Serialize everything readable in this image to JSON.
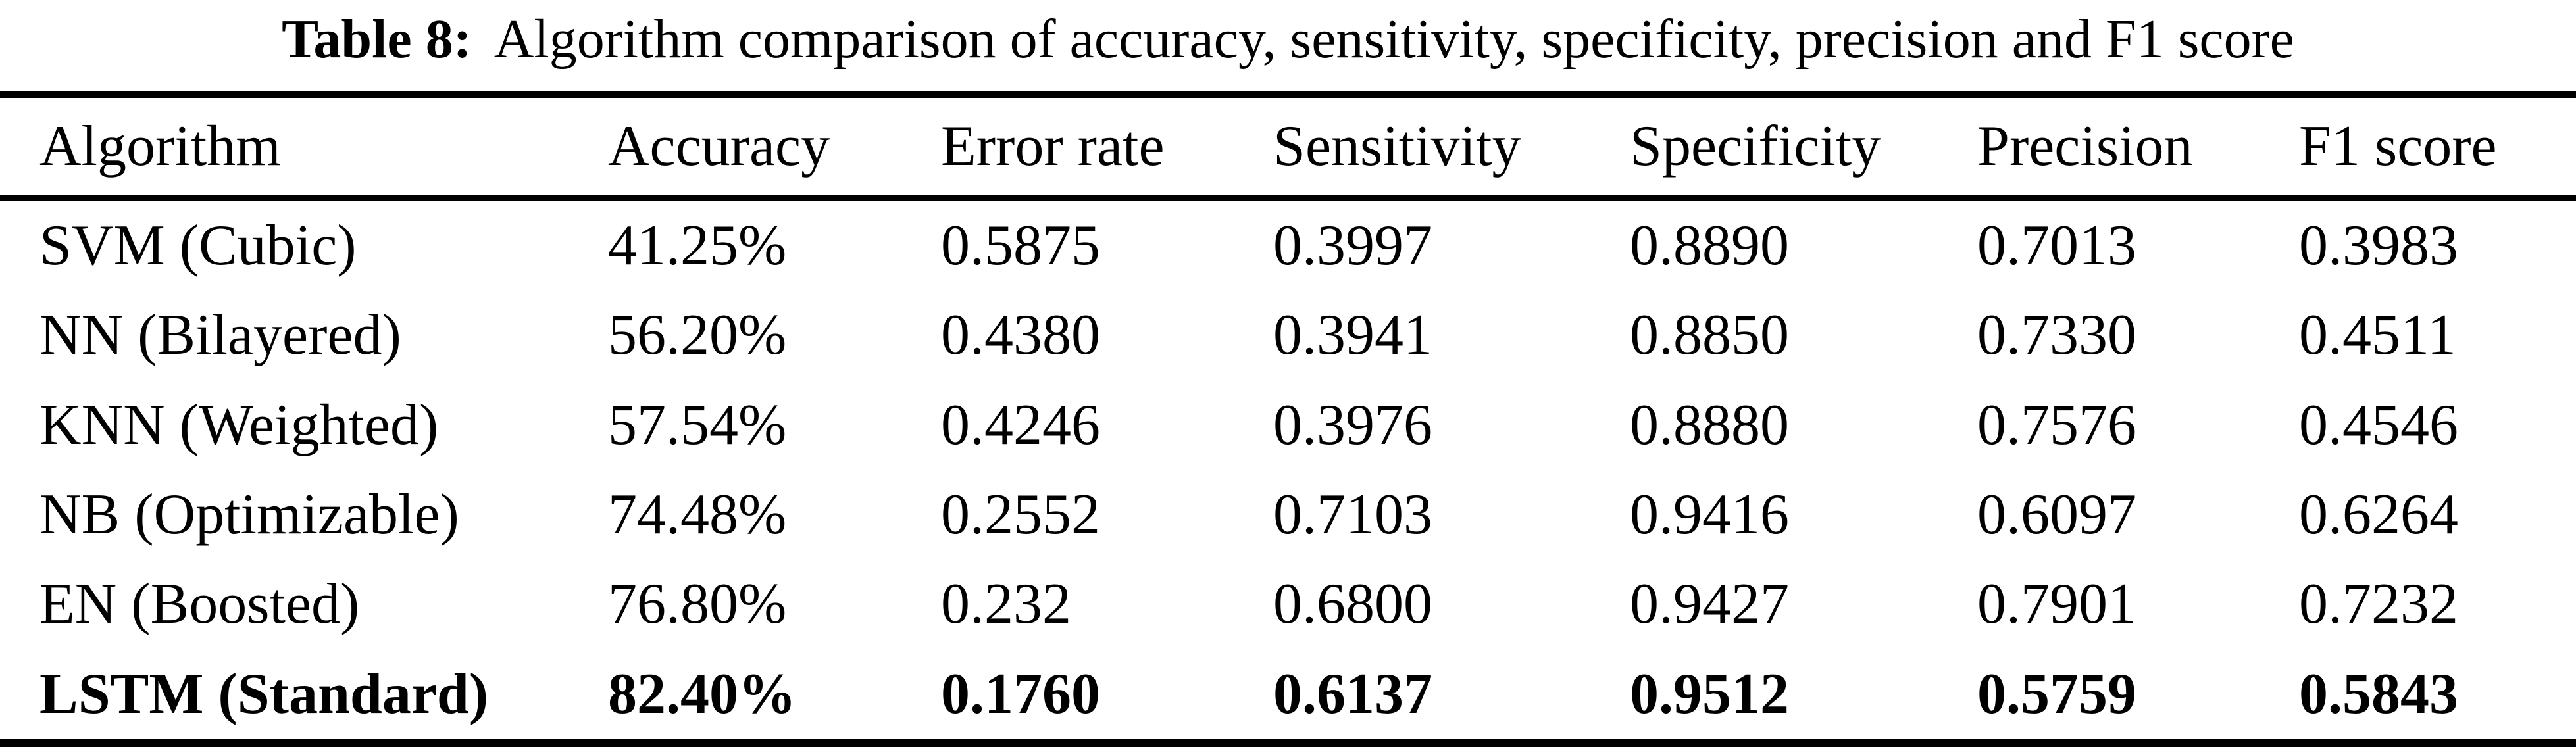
{
  "caption": {
    "label": "Table 8:",
    "text": "Algorithm comparison of accuracy, sensitivity, specificity, precision and F1 score"
  },
  "table": {
    "columns": [
      "Algorithm",
      "Accuracy",
      "Error rate",
      "Sensitivity",
      "Specificity",
      "Precision",
      "F1 score"
    ],
    "rows": [
      {
        "style": "regular",
        "cells": [
          "SVM (Cubic)",
          "41.25%",
          "0.5875",
          "0.3997",
          "0.8890",
          "0.7013",
          "0.3983"
        ]
      },
      {
        "style": "regular",
        "cells": [
          "NN (Bilayered)",
          "56.20%",
          "0.4380",
          "0.3941",
          "0.8850",
          "0.7330",
          "0.4511"
        ]
      },
      {
        "style": "regular",
        "cells": [
          "KNN (Weighted)",
          "57.54%",
          "0.4246",
          "0.3976",
          "0.8880",
          "0.7576",
          "0.4546"
        ]
      },
      {
        "style": "regular",
        "cells": [
          "NB (Optimizable)",
          "74.48%",
          "0.2552",
          "0.7103",
          "0.9416",
          "0.6097",
          "0.6264"
        ]
      },
      {
        "style": "regular",
        "cells": [
          "EN (Boosted)",
          "76.80%",
          "0.232",
          "0.6800",
          "0.9427",
          "0.7901",
          "0.7232"
        ]
      },
      {
        "style": "bold",
        "cells": [
          "LSTM (Standard)",
          "82.40%",
          "0.1760",
          "0.6137",
          "0.9512",
          "0.5759",
          "0.5843"
        ]
      }
    ]
  },
  "colors": {
    "text": "#000000",
    "background": "#ffffff",
    "rule": "#000000"
  }
}
